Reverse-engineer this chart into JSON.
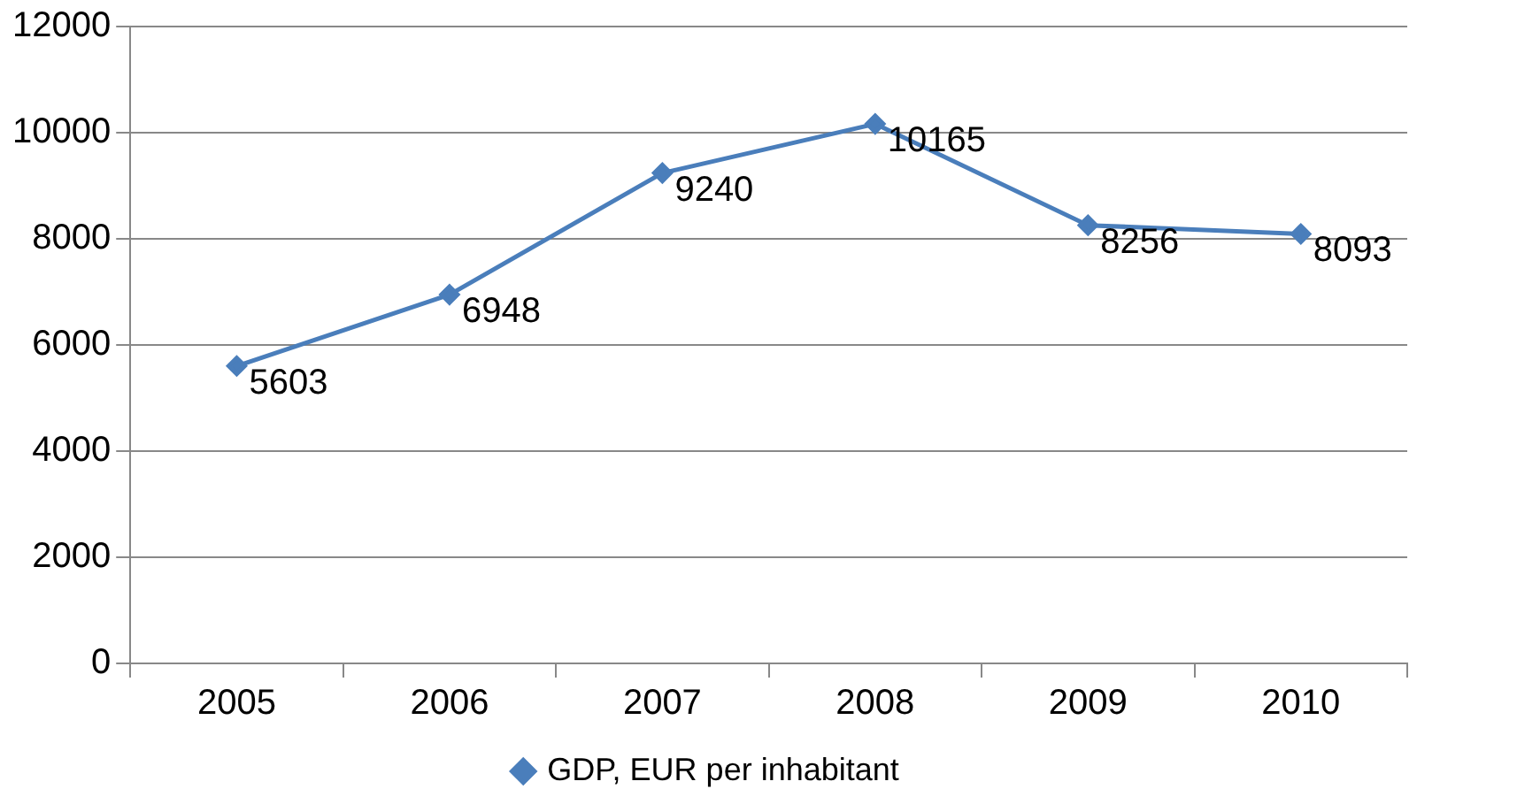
{
  "chart_data": {
    "type": "line",
    "categories": [
      "2005",
      "2006",
      "2007",
      "2008",
      "2009",
      "2010"
    ],
    "series": [
      {
        "name": "GDP, EUR per inhabitant",
        "color": "#4a7ebb",
        "values": [
          5603,
          6948,
          9240,
          10165,
          8256,
          8093
        ]
      }
    ],
    "ylim": [
      0,
      12000
    ],
    "yticks": [
      0,
      2000,
      4000,
      6000,
      8000,
      10000,
      12000
    ],
    "grid": "y",
    "legend": "bottom",
    "marker": "diamond",
    "line_style": "solid",
    "data_labels": true
  }
}
